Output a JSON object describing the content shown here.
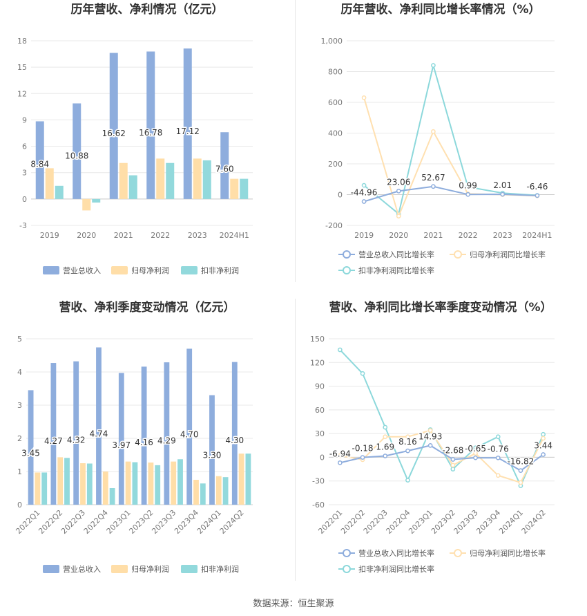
{
  "colors": {
    "revenue": "#8eaddd",
    "net_profit": "#ffdea8",
    "deducted_profit": "#92d9dc",
    "revenue_line": "#8eaddd",
    "net_profit_line": "#ffe0b0",
    "deducted_profit_line": "#8cd8db",
    "grid": "#e8e8e8",
    "axis_text": "#777777",
    "title": "#333333",
    "label": "#333333"
  },
  "source": "数据来源：恒生聚源",
  "chart_data": [
    {
      "id": "annual-bar",
      "type": "bar",
      "title": "历年营收、净利情况（亿元）",
      "categories": [
        "2019",
        "2020",
        "2021",
        "2022",
        "2023",
        "2024H1"
      ],
      "series": [
        {
          "name": "营业总收入",
          "values": [
            8.84,
            10.88,
            16.62,
            16.78,
            17.12,
            7.6
          ]
        },
        {
          "name": "归母净利润",
          "values": [
            3.5,
            -1.3,
            4.1,
            4.6,
            4.6,
            2.3
          ]
        },
        {
          "name": "扣非净利润",
          "values": [
            1.5,
            -0.4,
            2.7,
            4.1,
            4.4,
            2.3
          ]
        }
      ],
      "data_labels": [
        "8.84",
        "10.88",
        "16.62",
        "16.78",
        "17.12",
        "7.60"
      ],
      "yticks": [
        "18",
        "15",
        "12",
        "9",
        "6",
        "3",
        "0",
        "-3"
      ],
      "ylim": [
        -3,
        18
      ],
      "legend": "bottom"
    },
    {
      "id": "annual-line",
      "type": "line",
      "title": "历年营收、净利同比增长率情况（%）",
      "categories": [
        "2019",
        "2020",
        "2021",
        "2022",
        "2023",
        "2024H1"
      ],
      "series": [
        {
          "name": "营业总收入同比增长率",
          "values": [
            -44.96,
            23.06,
            52.67,
            0.99,
            2.01,
            -6.46
          ]
        },
        {
          "name": "归母净利润同比增长率",
          "values": [
            630,
            -140,
            410,
            5,
            0,
            -8
          ]
        },
        {
          "name": "扣非净利润同比增长率",
          "values": [
            60,
            -125,
            840,
            50,
            10,
            -5
          ]
        }
      ],
      "data_labels": [
        "-44.96",
        "23.06",
        "52.67",
        "0.99",
        "2.01",
        "-6.46"
      ],
      "yticks": [
        "1,000",
        "800",
        "600",
        "400",
        "200",
        "0",
        "-200"
      ],
      "ylim": [
        -200,
        1000
      ],
      "legend": "bottom"
    },
    {
      "id": "quarterly-bar",
      "type": "bar",
      "title": "营收、净利季度变动情况（亿元）",
      "categories": [
        "2022Q1",
        "2022Q2",
        "2022Q3",
        "2022Q4",
        "2023Q1",
        "2023Q2",
        "2023Q3",
        "2023Q4",
        "2024Q1",
        "2024Q2"
      ],
      "series": [
        {
          "name": "营业总收入",
          "values": [
            3.45,
            4.27,
            4.32,
            4.74,
            3.97,
            4.16,
            4.29,
            4.7,
            3.3,
            4.3
          ]
        },
        {
          "name": "归母净利润",
          "values": [
            0.97,
            1.43,
            1.25,
            1.0,
            1.3,
            1.27,
            1.3,
            0.75,
            0.86,
            1.54
          ]
        },
        {
          "name": "扣非净利润",
          "values": [
            0.97,
            1.41,
            1.24,
            0.5,
            1.28,
            1.19,
            1.37,
            0.64,
            0.83,
            1.54
          ]
        }
      ],
      "data_labels": [
        "3.45",
        "4.27",
        "4.32",
        "4.74",
        "3.97",
        "4.16",
        "4.29",
        "4.70",
        "3.30",
        "4.30"
      ],
      "yticks": [
        "5",
        "4",
        "3",
        "2",
        "1",
        "0"
      ],
      "ylim": [
        0,
        5
      ],
      "legend": "bottom"
    },
    {
      "id": "quarterly-line",
      "type": "line",
      "title": "营收、净利同比增长率季度变动情况（%）",
      "categories": [
        "2022Q1",
        "2022Q2",
        "2022Q3",
        "2022Q4",
        "2023Q1",
        "2023Q2",
        "2023Q3",
        "2023Q4",
        "2024Q1",
        "2024Q2"
      ],
      "series": [
        {
          "name": "营业总收入同比增长率",
          "values": [
            -6.94,
            -0.18,
            1.69,
            8.16,
            14.93,
            -2.68,
            -0.65,
            -0.76,
            -16.82,
            3.44
          ]
        },
        {
          "name": "归母净利润同比增长率",
          "values": [
            2,
            -3,
            26,
            26,
            34,
            -10,
            5,
            -23,
            -32,
            24
          ]
        },
        {
          "name": "扣非净利润同比增长率",
          "values": [
            136,
            106,
            38,
            -29,
            35,
            -15,
            12,
            26,
            -36,
            29
          ]
        }
      ],
      "data_labels": [
        "-6.94",
        "-0.18",
        "1.69",
        "8.16",
        "14.93",
        "-2.68",
        "-0.65",
        "-0.76",
        "-16.82",
        "3.44"
      ],
      "yticks": [
        "150",
        "120",
        "90",
        "60",
        "30",
        "0",
        "-30",
        "-60"
      ],
      "ylim": [
        -60,
        150
      ],
      "legend": "bottom"
    }
  ]
}
